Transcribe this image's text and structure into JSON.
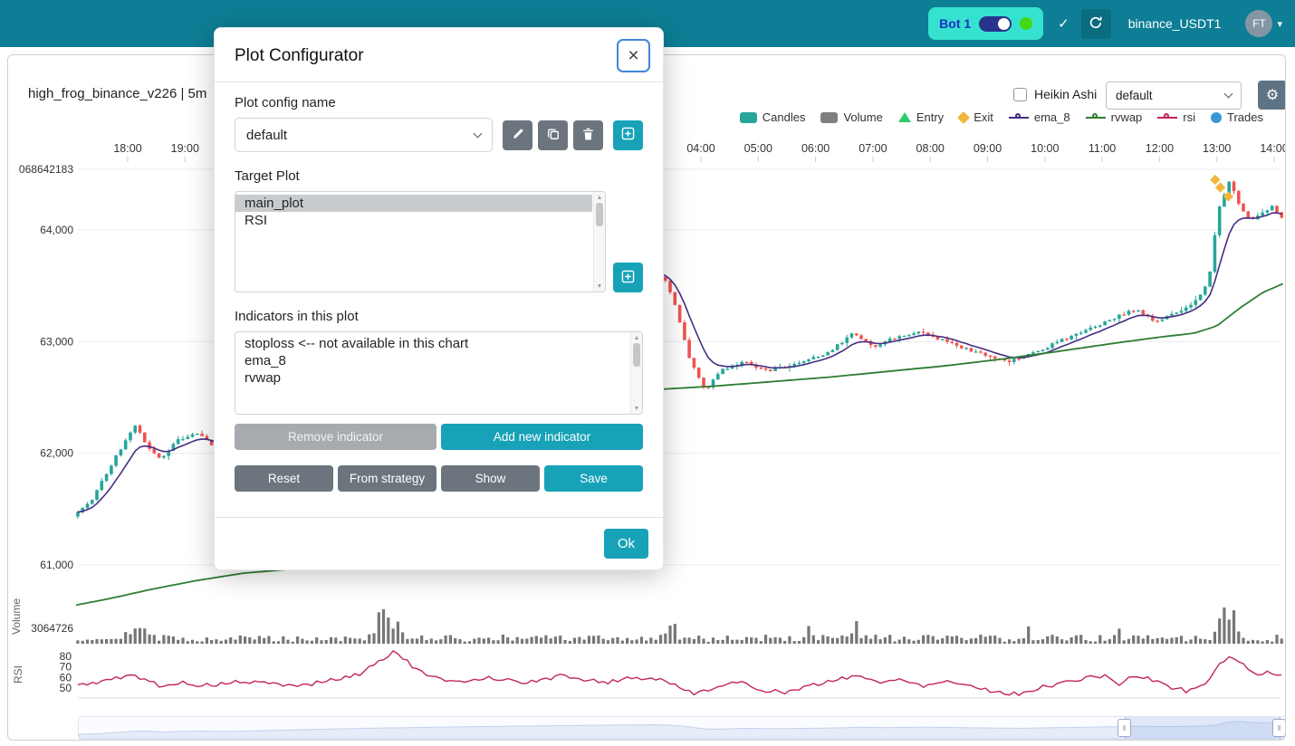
{
  "colors": {
    "primary": "#17a2b8",
    "secondary": "#6c757d",
    "navbar_teal": "#0d7e95",
    "accent_cyan": "#35e2cf",
    "candle_up": "#26a69a",
    "candle_down": "#ef5350",
    "ema": "#462d82",
    "rvwap": "#2e7d32",
    "rsi": "#c2255c",
    "volume_bar": "#767676",
    "online_green": "#43d813"
  },
  "navbar": {
    "bot_switch": {
      "label": "Bot 1"
    },
    "checkmark": "✓",
    "bot_name": "binance_USDT1",
    "avatar_initials": "FT",
    "avatar_caret": "▾"
  },
  "chart": {
    "title": "high_frog_binance_v226 | 5m",
    "heikin_ashi_label": "Heikin Ashi",
    "plot_config_select_value": "default",
    "gear_icon": "⚙",
    "legend": [
      {
        "label": "Candles",
        "marker": "rect",
        "color": "#26a69a"
      },
      {
        "label": "Volume",
        "marker": "rect",
        "color": "#7f7f7f"
      },
      {
        "label": "Entry",
        "marker": "triangle",
        "color": "#2ecc71"
      },
      {
        "label": "Exit",
        "marker": "diamond",
        "color": "#f2b63c"
      },
      {
        "label": "ema_8",
        "marker": "line",
        "color": "#462d82"
      },
      {
        "label": "rvwap",
        "marker": "line",
        "color": "#2e7d32"
      },
      {
        "label": "rsi",
        "marker": "line",
        "color": "#c2255c"
      },
      {
        "label": "Trades",
        "marker": "circle",
        "color": "#3998d2"
      }
    ],
    "price_axis_labels": [
      {
        "text": "068642183",
        "price": 64543
      },
      {
        "text": "64,000",
        "price": 64000
      },
      {
        "text": "63,000",
        "price": 63000
      },
      {
        "text": "62,000",
        "price": 62000
      },
      {
        "text": "61,000",
        "price": 61000
      }
    ],
    "volume_axis_label": "3064726",
    "volume_axis_title": "Volume",
    "rsi_axis_title": "RSI",
    "rsi_axis_labels": [
      80,
      70,
      60,
      50
    ],
    "time_axis_labels": [
      {
        "label": "18:00",
        "t": 0
      },
      {
        "label": "19:00",
        "t": 1
      },
      {
        "label": "04:00",
        "t": 10
      },
      {
        "label": "05:00",
        "t": 11
      },
      {
        "label": "06:00",
        "t": 12
      },
      {
        "label": "07:00",
        "t": 13
      },
      {
        "label": "08:00",
        "t": 14
      },
      {
        "label": "09:00",
        "t": 15
      },
      {
        "label": "10:00",
        "t": 16
      },
      {
        "label": "11:00",
        "t": 17
      },
      {
        "label": "12:00",
        "t": 18
      },
      {
        "label": "13:00",
        "t": 19
      },
      {
        "label": "14:00",
        "t": 20
      }
    ]
  },
  "chart_data": {
    "type": "candlestick",
    "timeframe": "5m",
    "pair": "binance_USDT1",
    "price_range": [
      60500,
      64700
    ],
    "rsi_range": [
      40,
      90
    ],
    "price_keyframes": [
      [
        -0.9,
        61420
      ],
      [
        -0.55,
        61580
      ],
      [
        -0.2,
        61900
      ],
      [
        0.2,
        62260
      ],
      [
        0.45,
        62050
      ],
      [
        0.65,
        61950
      ],
      [
        0.95,
        62120
      ],
      [
        1.3,
        62180
      ],
      [
        1.6,
        62050
      ],
      [
        2.5,
        62350
      ],
      [
        4,
        62800
      ],
      [
        6,
        63200
      ],
      [
        8,
        63500
      ],
      [
        9.1,
        63650
      ],
      [
        9.45,
        63560
      ],
      [
        9.65,
        63300
      ],
      [
        9.85,
        62900
      ],
      [
        10.15,
        62560
      ],
      [
        10.45,
        62740
      ],
      [
        10.8,
        62820
      ],
      [
        11.3,
        62740
      ],
      [
        11.8,
        62820
      ],
      [
        12.3,
        62900
      ],
      [
        12.75,
        63080
      ],
      [
        13.1,
        62960
      ],
      [
        13.5,
        63040
      ],
      [
        13.9,
        63080
      ],
      [
        14.4,
        62990
      ],
      [
        14.9,
        62900
      ],
      [
        15.45,
        62820
      ],
      [
        15.9,
        62900
      ],
      [
        16.4,
        63020
      ],
      [
        16.9,
        63120
      ],
      [
        17.35,
        63230
      ],
      [
        17.7,
        63290
      ],
      [
        18.0,
        63170
      ],
      [
        18.35,
        63260
      ],
      [
        18.7,
        63350
      ],
      [
        18.95,
        63560
      ],
      [
        19.1,
        64180
      ],
      [
        19.3,
        64440
      ],
      [
        19.5,
        64180
      ],
      [
        19.7,
        64080
      ],
      [
        19.9,
        64160
      ],
      [
        20.05,
        64230
      ],
      [
        20.16,
        64120
      ]
    ],
    "rvwap_left": [
      [
        -0.9,
        60640
      ],
      [
        -0.3,
        60700
      ],
      [
        0.4,
        60780
      ],
      [
        1.2,
        60860
      ],
      [
        2.0,
        60925
      ],
      [
        2.9,
        60965
      ]
    ],
    "rvwap_right": [
      [
        9.35,
        62575
      ],
      [
        10.2,
        62600
      ],
      [
        11.2,
        62640
      ],
      [
        12.2,
        62680
      ],
      [
        13.2,
        62730
      ],
      [
        14.2,
        62780
      ],
      [
        15.2,
        62840
      ],
      [
        16.2,
        62910
      ],
      [
        17.2,
        62985
      ],
      [
        18.0,
        63040
      ],
      [
        18.6,
        63075
      ],
      [
        19.0,
        63140
      ],
      [
        19.4,
        63300
      ],
      [
        19.8,
        63440
      ],
      [
        20.16,
        63520
      ]
    ],
    "rsi_keyframes": [
      [
        -0.9,
        52
      ],
      [
        -0.4,
        57
      ],
      [
        0.1,
        62
      ],
      [
        0.35,
        58
      ],
      [
        0.6,
        50
      ],
      [
        0.9,
        56
      ],
      [
        1.3,
        52
      ],
      [
        2,
        56
      ],
      [
        3,
        52
      ],
      [
        4,
        62
      ],
      [
        4.65,
        85
      ],
      [
        5.1,
        65
      ],
      [
        5.6,
        55
      ],
      [
        6.3,
        60
      ],
      [
        7,
        55
      ],
      [
        7.6,
        62
      ],
      [
        8.3,
        55
      ],
      [
        8.8,
        60
      ],
      [
        9.37,
        58
      ],
      [
        9.6,
        50
      ],
      [
        9.9,
        45
      ],
      [
        10.3,
        52
      ],
      [
        10.7,
        55
      ],
      [
        11.1,
        48
      ],
      [
        11.5,
        46
      ],
      [
        12,
        53
      ],
      [
        12.5,
        60
      ],
      [
        12.8,
        62
      ],
      [
        13.1,
        54
      ],
      [
        13.5,
        59
      ],
      [
        13.9,
        52
      ],
      [
        14.3,
        57
      ],
      [
        14.7,
        52
      ],
      [
        15.1,
        47
      ],
      [
        15.5,
        44
      ],
      [
        15.9,
        50
      ],
      [
        16.3,
        55
      ],
      [
        16.7,
        59
      ],
      [
        17.05,
        62
      ],
      [
        17.3,
        54
      ],
      [
        17.6,
        62
      ],
      [
        17.9,
        57
      ],
      [
        18.2,
        51
      ],
      [
        18.5,
        47
      ],
      [
        18.8,
        54
      ],
      [
        19.05,
        72
      ],
      [
        19.25,
        82
      ],
      [
        19.5,
        70
      ],
      [
        19.7,
        60
      ],
      [
        19.9,
        66
      ],
      [
        20.16,
        62
      ]
    ],
    "volume_spikes": [
      [
        0.15,
        0.25,
        0.25
      ],
      [
        4.45,
        0.85,
        0.13
      ],
      [
        4.7,
        0.4,
        0.08
      ],
      [
        9.5,
        0.5,
        0.09
      ],
      [
        11.9,
        0.3,
        0.05
      ],
      [
        12.7,
        0.55,
        0.05
      ],
      [
        15.7,
        0.3,
        0.04
      ],
      [
        17.3,
        0.3,
        0.05
      ],
      [
        19.12,
        0.95,
        0.1
      ],
      [
        19.3,
        0.7,
        0.08
      ]
    ],
    "trade_markers": [
      {
        "t": 18.97,
        "price": 64450,
        "type": "exit"
      },
      {
        "t": 19.06,
        "price": 64380,
        "type": "exit"
      },
      {
        "t": 19.2,
        "price": 64300,
        "type": "exit"
      }
    ]
  },
  "modal": {
    "title": "Plot Configurator",
    "close_icon": "×",
    "plot_config_name_label": "Plot config name",
    "config_select_value": "default",
    "target_plot_label": "Target Plot",
    "target_plots": {
      "items": [
        "main_plot",
        "RSI"
      ],
      "selected": "main_plot"
    },
    "indicators_label": "Indicators in this plot",
    "indicators": [
      "stoploss <-- not available in this chart",
      "ema_8",
      "rvwap"
    ],
    "buttons": {
      "remove_indicator": "Remove indicator",
      "add_new_indicator": "Add new indicator",
      "reset": "Reset",
      "from_strategy": "From strategy",
      "show": "Show",
      "save": "Save",
      "ok": "Ok"
    }
  }
}
